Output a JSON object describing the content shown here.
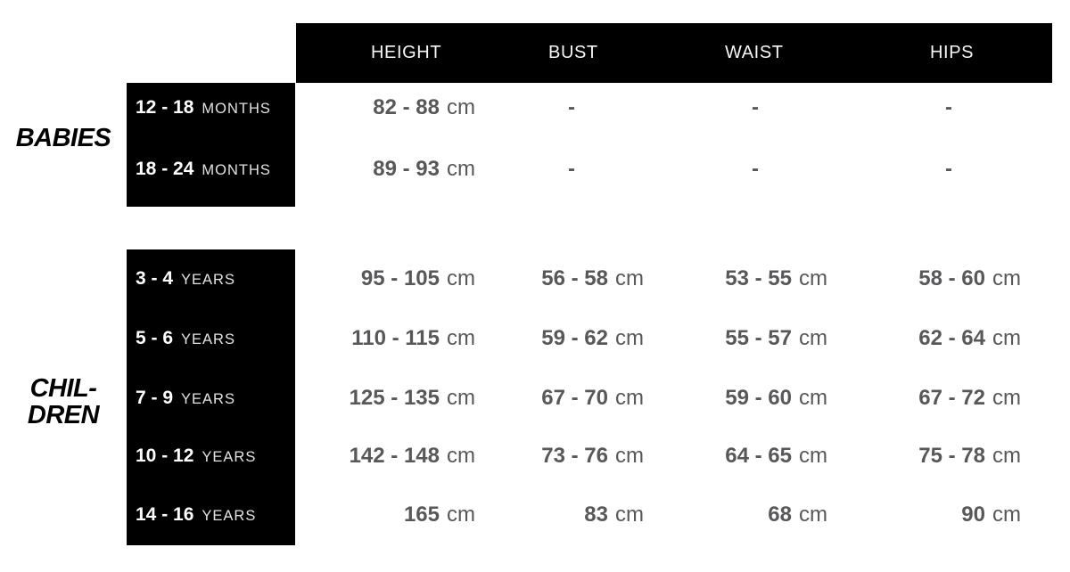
{
  "colors": {
    "background": "#ffffff",
    "panel": "#000000",
    "header_text": "#f7f7f7",
    "value_text": "#58585a",
    "label_number": "#ffffff",
    "label_unit": "#e3e3e3",
    "section_label": "#000000"
  },
  "chart_data": {
    "type": "table",
    "columns": [
      "HEIGHT",
      "BUST",
      "WAIST",
      "HIPS"
    ],
    "measurement_unit": "cm",
    "sections": [
      {
        "label_lines": [
          "BABIES"
        ],
        "age_unit_word": "MONTHS",
        "rows": [
          {
            "age": "12 - 18",
            "age_unit": "MONTHS",
            "height": {
              "v": "82 - 88",
              "u": "cm"
            },
            "bust": {
              "v": "-",
              "u": ""
            },
            "waist": {
              "v": "-",
              "u": ""
            },
            "hips": {
              "v": "-",
              "u": ""
            }
          },
          {
            "age": "18 - 24",
            "age_unit": "MONTHS",
            "height": {
              "v": "89 - 93",
              "u": "cm"
            },
            "bust": {
              "v": "-",
              "u": ""
            },
            "waist": {
              "v": "-",
              "u": ""
            },
            "hips": {
              "v": "-",
              "u": ""
            }
          }
        ]
      },
      {
        "label_lines": [
          "CHIL-",
          "DREN"
        ],
        "age_unit_word": "YEARS",
        "rows": [
          {
            "age": "3 - 4",
            "age_unit": "YEARS",
            "height": {
              "v": "95 - 105",
              "u": "cm"
            },
            "bust": {
              "v": "56 - 58",
              "u": "cm"
            },
            "waist": {
              "v": "53 - 55",
              "u": "cm"
            },
            "hips": {
              "v": "58 - 60",
              "u": "cm"
            }
          },
          {
            "age": "5 - 6",
            "age_unit": "YEARS",
            "height": {
              "v": "110 - 115",
              "u": "cm"
            },
            "bust": {
              "v": "59 - 62",
              "u": "cm"
            },
            "waist": {
              "v": "55 - 57",
              "u": "cm"
            },
            "hips": {
              "v": "62 - 64",
              "u": "cm"
            }
          },
          {
            "age": "7 - 9",
            "age_unit": "YEARS",
            "height": {
              "v": "125 - 135",
              "u": "cm"
            },
            "bust": {
              "v": "67 - 70",
              "u": "cm"
            },
            "waist": {
              "v": "59 - 60",
              "u": "cm"
            },
            "hips": {
              "v": "67 - 72",
              "u": "cm"
            }
          },
          {
            "age": "10 - 12",
            "age_unit": "YEARS",
            "height": {
              "v": "142 - 148",
              "u": "cm"
            },
            "bust": {
              "v": "73 - 76",
              "u": "cm"
            },
            "waist": {
              "v": "64 - 65",
              "u": "cm"
            },
            "hips": {
              "v": "75 - 78",
              "u": "cm"
            }
          },
          {
            "age": "14 - 16",
            "age_unit": "YEARS",
            "height": {
              "v": "165",
              "u": "cm"
            },
            "bust": {
              "v": "83",
              "u": "cm"
            },
            "waist": {
              "v": "68",
              "u": "cm"
            },
            "hips": {
              "v": "90",
              "u": "cm"
            }
          }
        ]
      }
    ]
  }
}
